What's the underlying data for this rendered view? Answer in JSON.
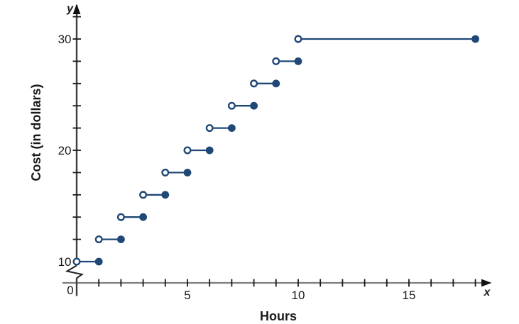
{
  "figure": {
    "y_axis_letter": "y",
    "x_axis_letter": "x",
    "origin_label": "0",
    "x_axis_title": "Hours",
    "y_axis_title": "Cost (in dollars)"
  },
  "chart_data": {
    "type": "step",
    "title": "",
    "xlabel": "Hours",
    "ylabel": "Cost (in dollars)",
    "xlim": [
      0,
      18.7
    ],
    "ylim": [
      10,
      32
    ],
    "y_axis_break_below": 10,
    "grid": "off",
    "x_ticks": [
      1,
      2,
      3,
      4,
      5,
      6,
      7,
      8,
      9,
      10,
      11,
      12,
      13,
      14,
      15,
      16,
      17,
      18
    ],
    "x_tick_labels": [
      {
        "value": 5,
        "label": "5"
      },
      {
        "value": 10,
        "label": "10"
      },
      {
        "value": 15,
        "label": "15"
      }
    ],
    "y_ticks": [
      10,
      12,
      14,
      16,
      18,
      20,
      22,
      24,
      26,
      28,
      30,
      32
    ],
    "y_tick_labels": [
      {
        "value": 10,
        "label": "10"
      },
      {
        "value": 20,
        "label": "20"
      },
      {
        "value": 30,
        "label": "30"
      }
    ],
    "steps": [
      {
        "x_start": 0,
        "x_end": 1,
        "y": 10
      },
      {
        "x_start": 1,
        "x_end": 2,
        "y": 12
      },
      {
        "x_start": 2,
        "x_end": 3,
        "y": 14
      },
      {
        "x_start": 3,
        "x_end": 4,
        "y": 16
      },
      {
        "x_start": 4,
        "x_end": 5,
        "y": 18
      },
      {
        "x_start": 5,
        "x_end": 6,
        "y": 20
      },
      {
        "x_start": 6,
        "x_end": 7,
        "y": 22
      },
      {
        "x_start": 7,
        "x_end": 8,
        "y": 24
      },
      {
        "x_start": 8,
        "x_end": 9,
        "y": 26
      },
      {
        "x_start": 9,
        "x_end": 10,
        "y": 28
      },
      {
        "x_start": 10,
        "x_end": 18,
        "y": 30
      }
    ],
    "marker_open_at": "start",
    "marker_closed_at": "end",
    "colors": {
      "series": "#1f4876",
      "x_axis": "#7d7d7d",
      "y_axis": "#3f3f3f",
      "ticks": "#1a1a1a",
      "arrow": "#111111",
      "text": "#1a1a1a",
      "open_marker_fill": "#ffffff"
    }
  }
}
